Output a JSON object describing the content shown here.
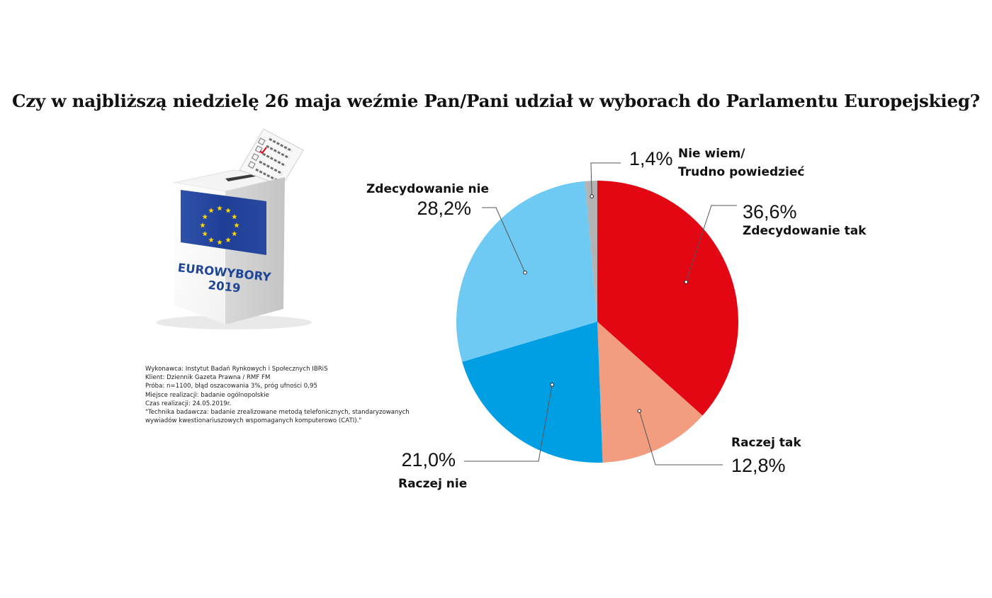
{
  "title": "Czy w najbliższą niedzielę 26 maja weźmie Pan/Pani udział w wyborach do Parlamentu Europejskieg?",
  "ballot_box": {
    "line1": "EUROWYBORY",
    "line2": "2019"
  },
  "notes": [
    "Wykonawca: Instytut Badań Rynkowych i Społecznych IBRiS",
    "Klient: Dziennik Gazeta Prawna / RMF FM",
    "Próba: n=1100, błąd oszacowania 3%, próg ufności 0,95",
    "Miejsce realizacji: badanie ogólnopolskie",
    "Czas realizacji: 24.05.2019r.",
    "\"Technika badawcza: badanie zrealizowane metodą telefonicznych, standaryzowanych",
    "wywiadów kwestionariuszowych wspomaganych komputerowo (CATI).\""
  ],
  "chart_data": {
    "type": "pie",
    "slices": [
      {
        "label": "Zdecydowanie tak",
        "label_lines": [
          "Zdecydowanie tak"
        ],
        "value": 36.6,
        "value_text": "36,6%",
        "color": "#e30613"
      },
      {
        "label": "Raczej tak",
        "label_lines": [
          "Raczej tak"
        ],
        "value": 12.8,
        "value_text": "12,8%",
        "color": "#f29c80"
      },
      {
        "label": "Raczej nie",
        "label_lines": [
          "Raczej nie"
        ],
        "value": 21.0,
        "value_text": "21,0%",
        "color": "#009fe3"
      },
      {
        "label": "Zdecydowanie nie",
        "label_lines": [
          "Zdecydowanie nie"
        ],
        "value": 28.2,
        "value_text": "28,2%",
        "color": "#6ecaf3"
      },
      {
        "label": "Nie wiem/ Trudno powiedzieć",
        "label_lines": [
          "Nie wiem/",
          "Trudno powiedzieć"
        ],
        "value": 1.4,
        "value_text": "1,4%",
        "color": "#b3b3b3"
      }
    ],
    "start": "top",
    "direction": "clockwise"
  }
}
